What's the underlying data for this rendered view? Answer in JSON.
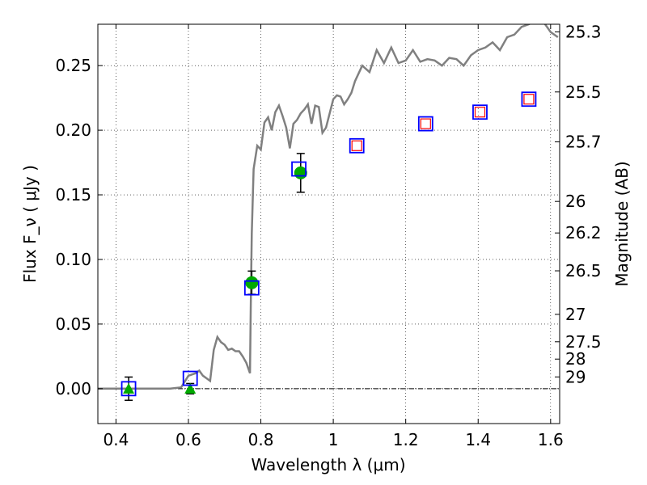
{
  "chart_data": {
    "type": "scatter",
    "xlabel": "Wavelength  λ (μm)",
    "ylabel": "Flux  F_ν  ( μJy )",
    "y2label": "Magnitude (AB)",
    "xlim": [
      0.35,
      1.625
    ],
    "ylim": [
      -0.027,
      0.282
    ],
    "grid": true,
    "x_ticks": [
      0.4,
      0.6,
      0.8,
      1.0,
      1.2,
      1.4,
      1.6
    ],
    "x_tick_labels": [
      "0.4",
      "0.6",
      "0.8",
      "1",
      "1.2",
      "1.4",
      "1.6"
    ],
    "y_ticks": [
      0.0,
      0.05,
      0.1,
      0.15,
      0.2,
      0.25
    ],
    "y_tick_labels": [
      "0.00",
      "0.05",
      "0.10",
      "0.15",
      "0.20",
      "0.25"
    ],
    "mag_ticks": [
      {
        "label": "25.3",
        "flux": 0.2761
      },
      {
        "label": "25.5",
        "flux": 0.2296
      },
      {
        "label": "25.7",
        "flux": 0.191
      },
      {
        "label": "26",
        "flux": 0.1449
      },
      {
        "label": "26.2",
        "flux": 0.1205
      },
      {
        "label": "26.5",
        "flux": 0.0912
      },
      {
        "label": "27",
        "flux": 0.0575
      },
      {
        "label": "27.5",
        "flux": 0.0363
      },
      {
        "label": "28",
        "flux": 0.0229
      },
      {
        "label": "29",
        "flux": 0.0091
      }
    ],
    "colors": {
      "spectrum": "#808080",
      "model_box": "#0000ff",
      "measured_point": "#00aa00",
      "upper_limit": "#00aa00",
      "predicted_inner": "#ff0000",
      "errorbar": "#000000",
      "zero_line": "#000000"
    },
    "spectrum": {
      "x": [
        0.35,
        0.4,
        0.45,
        0.5,
        0.55,
        0.58,
        0.6,
        0.62,
        0.63,
        0.64,
        0.65,
        0.66,
        0.67,
        0.68,
        0.69,
        0.7,
        0.71,
        0.72,
        0.73,
        0.74,
        0.75,
        0.76,
        0.77,
        0.772,
        0.775,
        0.78,
        0.79,
        0.8,
        0.81,
        0.82,
        0.83,
        0.84,
        0.85,
        0.86,
        0.87,
        0.88,
        0.89,
        0.9,
        0.91,
        0.92,
        0.93,
        0.94,
        0.95,
        0.96,
        0.97,
        0.98,
        0.99,
        1.0,
        1.01,
        1.02,
        1.03,
        1.04,
        1.05,
        1.06,
        1.08,
        1.1,
        1.12,
        1.14,
        1.16,
        1.18,
        1.2,
        1.22,
        1.24,
        1.26,
        1.28,
        1.3,
        1.32,
        1.34,
        1.36,
        1.38,
        1.4,
        1.42,
        1.44,
        1.46,
        1.48,
        1.5,
        1.52,
        1.54,
        1.56,
        1.58,
        1.6,
        1.62
      ],
      "y": [
        0.0,
        0.0,
        0.0,
        0.0,
        0.0,
        0.001,
        0.01,
        0.012,
        0.014,
        0.01,
        0.008,
        0.006,
        0.03,
        0.04,
        0.036,
        0.034,
        0.03,
        0.031,
        0.029,
        0.029,
        0.025,
        0.02,
        0.012,
        0.06,
        0.12,
        0.17,
        0.188,
        0.185,
        0.206,
        0.21,
        0.2,
        0.214,
        0.219,
        0.211,
        0.202,
        0.186,
        0.205,
        0.208,
        0.213,
        0.216,
        0.22,
        0.205,
        0.219,
        0.218,
        0.198,
        0.202,
        0.213,
        0.224,
        0.227,
        0.226,
        0.22,
        0.224,
        0.229,
        0.238,
        0.25,
        0.245,
        0.262,
        0.252,
        0.264,
        0.252,
        0.254,
        0.262,
        0.253,
        0.255,
        0.254,
        0.25,
        0.256,
        0.255,
        0.25,
        0.258,
        0.262,
        0.264,
        0.268,
        0.262,
        0.272,
        0.274,
        0.28,
        0.282,
        0.285,
        0.284,
        0.276,
        0.272
      ]
    },
    "model_boxes": {
      "x": [
        0.435,
        0.605,
        0.775,
        0.905,
        1.065,
        1.255,
        1.405,
        1.54
      ],
      "y": [
        0.0,
        0.008,
        0.078,
        0.17,
        0.188,
        0.205,
        0.214,
        0.224
      ]
    },
    "predicted_points": {
      "x": [
        1.065,
        1.255,
        1.405,
        1.54
      ],
      "y": [
        0.188,
        0.205,
        0.214,
        0.224
      ]
    },
    "measured_points": {
      "x": [
        0.775,
        0.91
      ],
      "y": [
        0.082,
        0.167
      ],
      "err": [
        0.009,
        0.015
      ]
    },
    "upper_limits": {
      "x": [
        0.435,
        0.605
      ],
      "y": [
        0.0,
        0.0
      ],
      "err": [
        0.009,
        0.004
      ]
    }
  }
}
